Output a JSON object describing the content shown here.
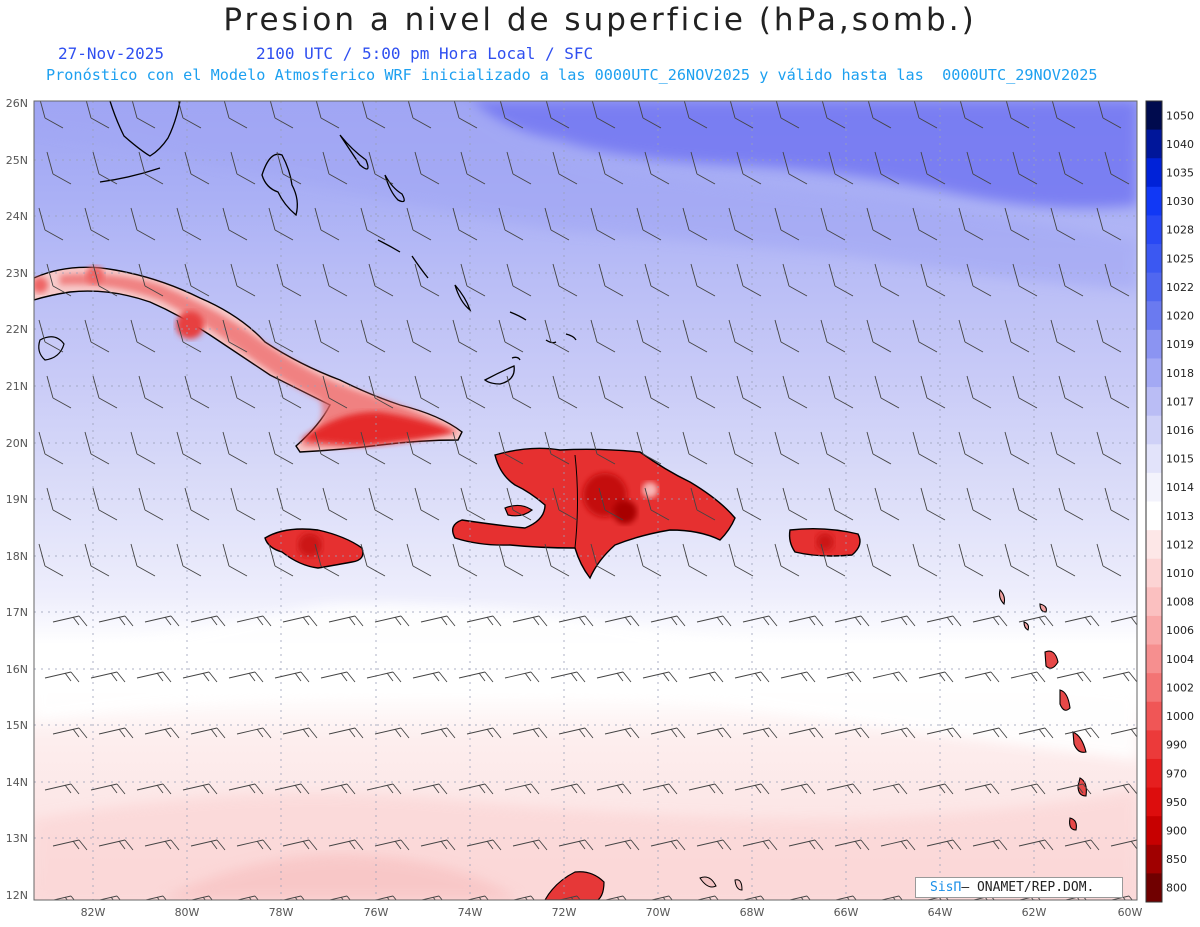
{
  "title": "Presion a nivel de superficie (hPa,somb.)",
  "date": "27-Nov-2025",
  "time_label": "2100 UTC / 5:00 pm Hora Local / SFC",
  "subtitle": "Pronóstico con el Modelo Atmosferico WRF inicializado a las 0000UTC_26NOV2025 y válido hasta las  0000UTC_29NOV2025",
  "credit": {
    "brand": "SisΠ",
    "text": "– ONAMET/REP.DOM."
  },
  "lat_labels": [
    "26N",
    "25N",
    "24N",
    "23N",
    "22N",
    "21N",
    "20N",
    "19N",
    "18N",
    "17N",
    "16N",
    "15N",
    "14N",
    "13N",
    "12N"
  ],
  "lon_labels": [
    "82W",
    "80W",
    "78W",
    "76W",
    "74W",
    "72W",
    "70W",
    "68W",
    "66W",
    "64W",
    "62W",
    "60W"
  ],
  "colorbar": {
    "levels": [
      "1050",
      "1040",
      "1035",
      "1030",
      "1028",
      "1025",
      "1022",
      "1020",
      "1019",
      "1018",
      "1017",
      "1016",
      "1015",
      "1014",
      "1013",
      "1012",
      "1010",
      "1008",
      "1006",
      "1004",
      "1002",
      "1000",
      "990",
      "970",
      "950",
      "900",
      "850",
      "800"
    ],
    "colors": [
      "#000b4e",
      "#00169a",
      "#0022d8",
      "#1138f5",
      "#2848f4",
      "#3b58f2",
      "#5067f0",
      "#6a7af0",
      "#8b94f2",
      "#a3a9f4",
      "#babdf5",
      "#cfd1f7",
      "#e2e3fa",
      "#f3f3fc",
      "#ffffff",
      "#fde7e7",
      "#fcd4d4",
      "#fbc0c0",
      "#f9a8a8",
      "#f68f8f",
      "#f37474",
      "#f05656",
      "#ec3a3a",
      "#e61f1f",
      "#dd0d0d",
      "#c70000",
      "#a00000",
      "#700000"
    ]
  },
  "map": {
    "region": "Caribe",
    "lat_range": [
      12,
      26
    ],
    "lon_range": [
      -83,
      -60
    ],
    "field": "surface pressure (hPa)"
  }
}
